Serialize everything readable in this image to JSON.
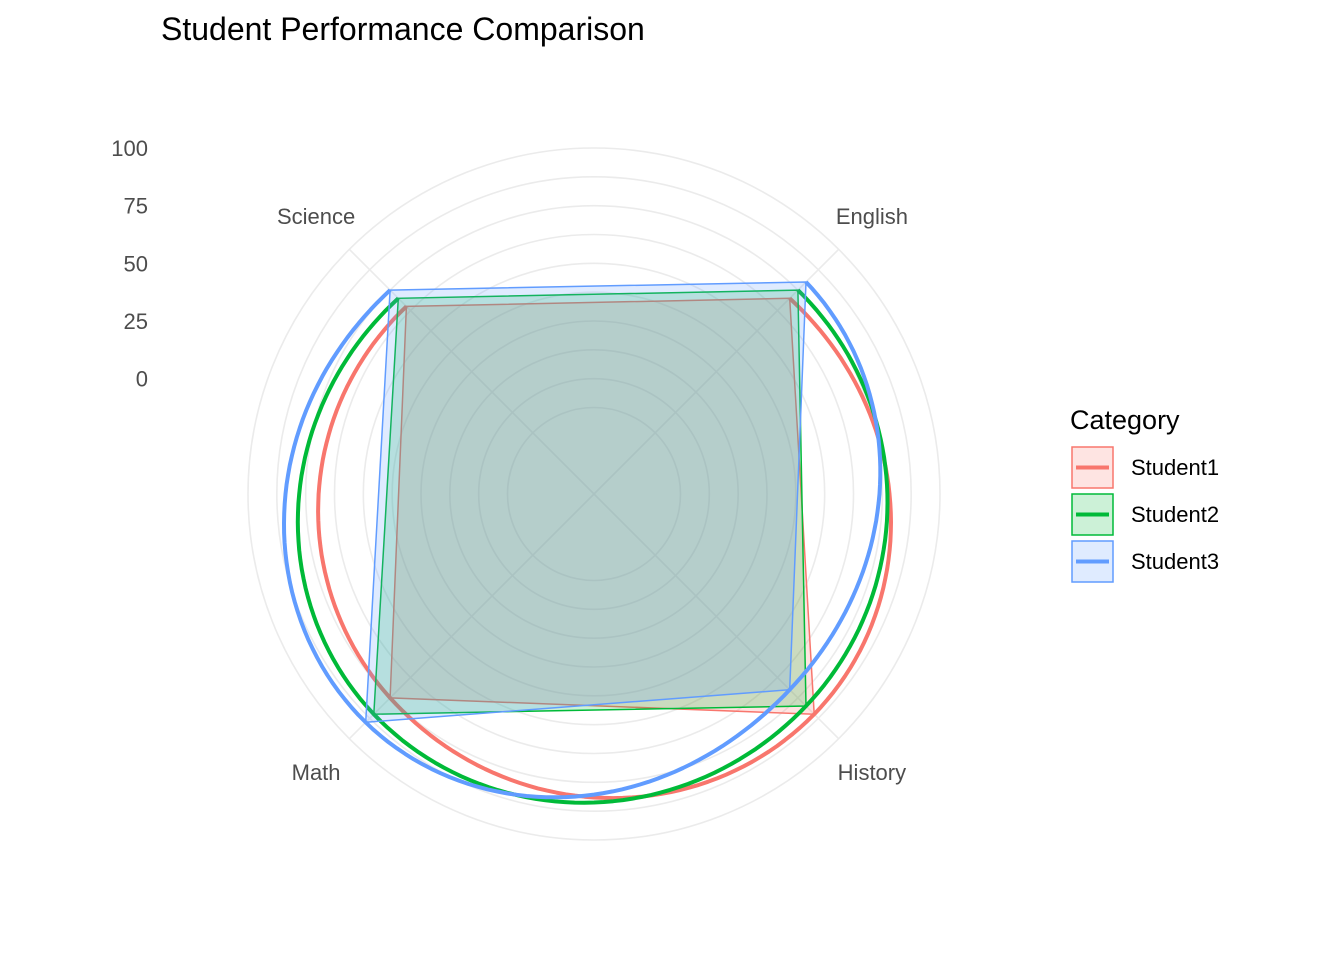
{
  "chart_data": {
    "type": "radar",
    "title": "Student Performance Comparison",
    "categories": [
      "English",
      "History",
      "Math",
      "Science"
    ],
    "radial_ticks": [
      0,
      25,
      50,
      75,
      100
    ],
    "rlim": [
      -50,
      100
    ],
    "grid": true,
    "legend": {
      "title": "Category",
      "position": "right"
    },
    "series": [
      {
        "name": "Student1",
        "color": "#F8766D",
        "values": [
          70,
          85,
          75,
          65
        ]
      },
      {
        "name": "Student2",
        "color": "#00BA38",
        "values": [
          75,
          80,
          85,
          70
        ]
      },
      {
        "name": "Student3",
        "color": "#619CFF",
        "values": [
          80,
          70,
          90,
          75
        ]
      }
    ]
  }
}
